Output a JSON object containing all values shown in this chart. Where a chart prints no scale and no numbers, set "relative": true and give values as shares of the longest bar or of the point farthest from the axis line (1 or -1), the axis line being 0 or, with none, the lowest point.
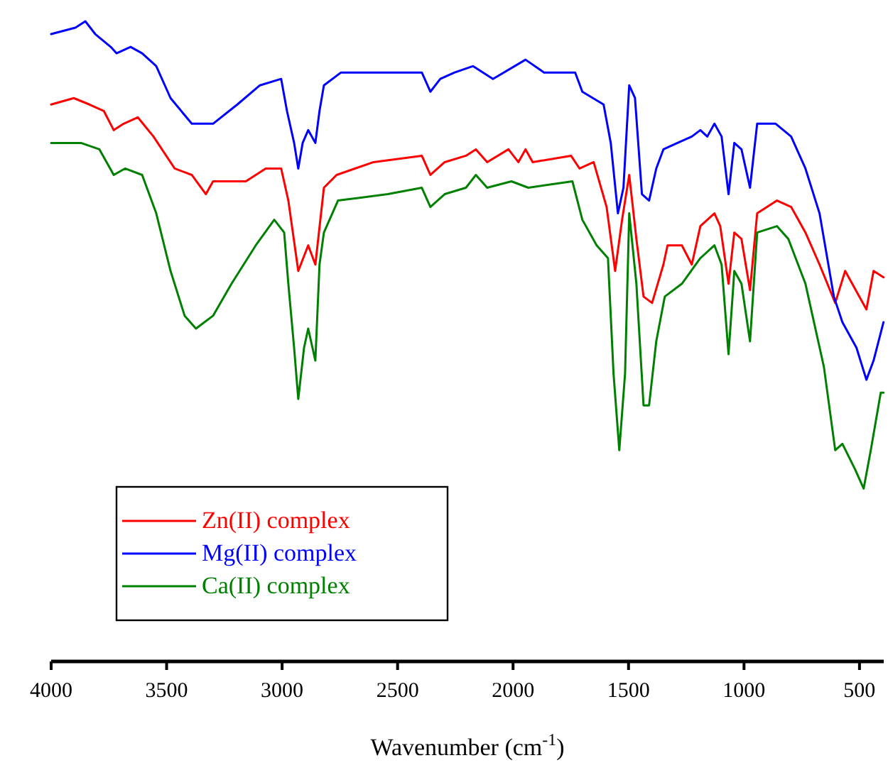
{
  "chart_data": {
    "type": "line",
    "xlabel": "Wavenumber (cm$^{-1}$)",
    "relative": true,
    "xlim": [
      4000,
      395
    ],
    "xticks": [
      4000,
      3500,
      3000,
      2500,
      2000,
      1500,
      1000,
      500
    ],
    "legend": "left",
    "grid": false,
    "tick_labels": "x",
    "series": [
      {
        "name": "Zn(II) complex",
        "color": "#ff0000",
        "x": [
          4000,
          3902,
          3834,
          3772,
          3729,
          3686,
          3625,
          3557,
          3465,
          3391,
          3330,
          3299,
          3157,
          3071,
          3004,
          2973,
          2930,
          2887,
          2856,
          2819,
          2764,
          2604,
          2395,
          2358,
          2296,
          2204,
          2161,
          2112,
          2020,
          1977,
          1946,
          1915,
          1749,
          1712,
          1651,
          1595,
          1558,
          1528,
          1497,
          1466,
          1435,
          1398,
          1349,
          1331,
          1269,
          1226,
          1189,
          1128,
          1103,
          1067,
          1042,
          1011,
          974,
          943,
          857,
          796,
          734,
          673,
          605,
          562,
          470,
          439,
          396
        ],
        "values": [
          0.87,
          0.88,
          0.87,
          0.86,
          0.83,
          0.84,
          0.85,
          0.82,
          0.77,
          0.76,
          0.73,
          0.75,
          0.75,
          0.77,
          0.77,
          0.72,
          0.61,
          0.65,
          0.62,
          0.74,
          0.76,
          0.78,
          0.79,
          0.76,
          0.78,
          0.79,
          0.8,
          0.78,
          0.8,
          0.78,
          0.8,
          0.78,
          0.79,
          0.77,
          0.78,
          0.71,
          0.61,
          0.69,
          0.76,
          0.66,
          0.57,
          0.56,
          0.62,
          0.65,
          0.65,
          0.62,
          0.68,
          0.7,
          0.68,
          0.59,
          0.67,
          0.66,
          0.58,
          0.7,
          0.72,
          0.71,
          0.67,
          0.62,
          0.56,
          0.61,
          0.55,
          0.61,
          0.6
        ]
      },
      {
        "name": "Mg(II) complex",
        "color": "#0000ff",
        "x": [
          4000,
          3895,
          3852,
          3809,
          3742,
          3717,
          3656,
          3606,
          3545,
          3483,
          3391,
          3299,
          3194,
          3096,
          3004,
          2979,
          2948,
          2930,
          2911,
          2887,
          2856,
          2838,
          2819,
          2745,
          2561,
          2395,
          2358,
          2315,
          2253,
          2173,
          2087,
          1946,
          1866,
          1731,
          1700,
          1608,
          1577,
          1546,
          1522,
          1497,
          1472,
          1442,
          1411,
          1380,
          1349,
          1288,
          1226,
          1189,
          1159,
          1128,
          1097,
          1067,
          1042,
          1011,
          974,
          943,
          863,
          796,
          734,
          673,
          611,
          574,
          513,
          470,
          439,
          396
        ],
        "values": [
          0.98,
          0.99,
          1.0,
          0.98,
          0.96,
          0.95,
          0.96,
          0.95,
          0.93,
          0.88,
          0.84,
          0.84,
          0.87,
          0.9,
          0.91,
          0.86,
          0.81,
          0.77,
          0.81,
          0.83,
          0.81,
          0.86,
          0.9,
          0.92,
          0.92,
          0.92,
          0.89,
          0.91,
          0.92,
          0.93,
          0.91,
          0.94,
          0.92,
          0.92,
          0.89,
          0.87,
          0.81,
          0.7,
          0.74,
          0.9,
          0.88,
          0.73,
          0.72,
          0.77,
          0.8,
          0.81,
          0.82,
          0.83,
          0.82,
          0.84,
          0.82,
          0.73,
          0.81,
          0.8,
          0.74,
          0.84,
          0.84,
          0.82,
          0.77,
          0.7,
          0.57,
          0.53,
          0.49,
          0.44,
          0.47,
          0.53
        ]
      },
      {
        "name": "Ca(II) complex",
        "color": "#008000",
        "x": [
          4000,
          3871,
          3791,
          3729,
          3680,
          3606,
          3545,
          3483,
          3422,
          3373,
          3299,
          3219,
          3114,
          3034,
          2991,
          2973,
          2948,
          2930,
          2905,
          2887,
          2856,
          2838,
          2819,
          2758,
          2542,
          2395,
          2358,
          2296,
          2204,
          2161,
          2112,
          2007,
          1934,
          1743,
          1700,
          1638,
          1589,
          1565,
          1540,
          1515,
          1497,
          1466,
          1435,
          1411,
          1380,
          1343,
          1269,
          1189,
          1128,
          1097,
          1067,
          1042,
          1011,
          974,
          943,
          857,
          808,
          734,
          654,
          605,
          574,
          519,
          482,
          451,
          408,
          396
        ],
        "values": [
          0.81,
          0.81,
          0.8,
          0.76,
          0.77,
          0.76,
          0.7,
          0.61,
          0.54,
          0.52,
          0.54,
          0.59,
          0.65,
          0.69,
          0.67,
          0.59,
          0.49,
          0.41,
          0.49,
          0.52,
          0.47,
          0.62,
          0.67,
          0.72,
          0.73,
          0.74,
          0.71,
          0.73,
          0.74,
          0.76,
          0.74,
          0.75,
          0.74,
          0.75,
          0.69,
          0.65,
          0.63,
          0.45,
          0.33,
          0.45,
          0.7,
          0.59,
          0.4,
          0.4,
          0.5,
          0.57,
          0.59,
          0.63,
          0.65,
          0.62,
          0.48,
          0.61,
          0.59,
          0.5,
          0.67,
          0.68,
          0.66,
          0.59,
          0.46,
          0.33,
          0.34,
          0.3,
          0.27,
          0.33,
          0.42,
          0.42
        ]
      }
    ]
  }
}
